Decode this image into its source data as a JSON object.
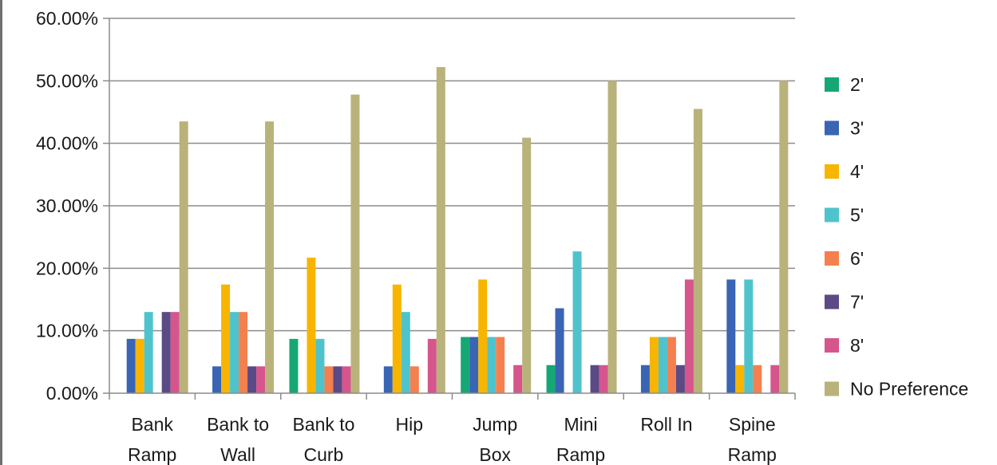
{
  "chart_data": {
    "type": "bar",
    "title": "",
    "xlabel": "",
    "ylabel": "",
    "ylim": [
      0,
      0.6
    ],
    "y_ticks": [
      "0.00%",
      "10.00%",
      "20.00%",
      "30.00%",
      "40.00%",
      "50.00%",
      "60.00%"
    ],
    "grid": "horizontal",
    "legend_position": "right",
    "categories": [
      [
        "Bank",
        "Ramp"
      ],
      [
        "Bank to",
        "Wall"
      ],
      [
        "Bank to",
        "Curb"
      ],
      [
        "Hip",
        ""
      ],
      [
        "Jump",
        "Box"
      ],
      [
        "Mini",
        "Ramp"
      ],
      [
        "Roll In",
        ""
      ],
      [
        "Spine",
        "Ramp"
      ]
    ],
    "series": [
      {
        "name": "2'",
        "color": "#16a874",
        "values": [
          0.0,
          0.0,
          0.087,
          0.0,
          0.09,
          0.045,
          0.0,
          0.0
        ]
      },
      {
        "name": "3'",
        "color": "#3a64b4",
        "values": [
          0.087,
          0.043,
          0.0,
          0.043,
          0.09,
          0.136,
          0.045,
          0.182
        ]
      },
      {
        "name": "4'",
        "color": "#f7b500",
        "values": [
          0.087,
          0.174,
          0.217,
          0.174,
          0.182,
          0.0,
          0.09,
          0.045
        ]
      },
      {
        "name": "5'",
        "color": "#4fc3cc",
        "values": [
          0.13,
          0.13,
          0.087,
          0.13,
          0.09,
          0.227,
          0.09,
          0.182
        ]
      },
      {
        "name": "6'",
        "color": "#f5804f",
        "values": [
          0.0,
          0.13,
          0.043,
          0.043,
          0.09,
          0.0,
          0.09,
          0.045
        ]
      },
      {
        "name": "7'",
        "color": "#5a4a86",
        "values": [
          0.13,
          0.043,
          0.043,
          0.0,
          0.0,
          0.045,
          0.045,
          0.0
        ]
      },
      {
        "name": "8'",
        "color": "#d6558c",
        "values": [
          0.13,
          0.043,
          0.043,
          0.087,
          0.045,
          0.045,
          0.182,
          0.045
        ]
      },
      {
        "name": "No Preference",
        "color": "#b9b27a",
        "values": [
          0.435,
          0.435,
          0.478,
          0.522,
          0.409,
          0.5,
          0.455,
          0.5
        ]
      }
    ]
  }
}
